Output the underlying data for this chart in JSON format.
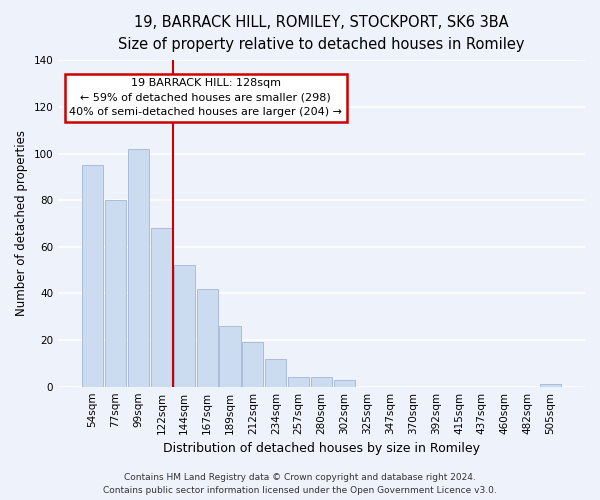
{
  "title": "19, BARRACK HILL, ROMILEY, STOCKPORT, SK6 3BA",
  "subtitle": "Size of property relative to detached houses in Romiley",
  "xlabel": "Distribution of detached houses by size in Romiley",
  "ylabel": "Number of detached properties",
  "bar_labels": [
    "54sqm",
    "77sqm",
    "99sqm",
    "122sqm",
    "144sqm",
    "167sqm",
    "189sqm",
    "212sqm",
    "234sqm",
    "257sqm",
    "280sqm",
    "302sqm",
    "325sqm",
    "347sqm",
    "370sqm",
    "392sqm",
    "415sqm",
    "437sqm",
    "460sqm",
    "482sqm",
    "505sqm"
  ],
  "bar_values": [
    95,
    80,
    102,
    68,
    52,
    42,
    26,
    19,
    12,
    4,
    4,
    3,
    0,
    0,
    0,
    0,
    0,
    0,
    0,
    0,
    1
  ],
  "bar_color": "#ccdcf0",
  "bar_edge_color": "#aabcd8",
  "vline_color": "#cc0000",
  "vline_position": 3.5,
  "annotation_text_line1": "19 BARRACK HILL: 128sqm",
  "annotation_text_line2": "← 59% of detached houses are smaller (298)",
  "annotation_text_line3": "40% of semi-detached houses are larger (204) →",
  "ylim": [
    0,
    140
  ],
  "yticks": [
    0,
    20,
    40,
    60,
    80,
    100,
    120,
    140
  ],
  "background_color": "#eef2fb",
  "grid_color": "#ffffff",
  "footer_line1": "Contains HM Land Registry data © Crown copyright and database right 2024.",
  "footer_line2": "Contains public sector information licensed under the Open Government Licence v3.0.",
  "title_fontsize": 10.5,
  "subtitle_fontsize": 9.5,
  "xlabel_fontsize": 9,
  "ylabel_fontsize": 8.5,
  "tick_fontsize": 7.5,
  "annotation_fontsize": 8,
  "footer_fontsize": 6.5
}
